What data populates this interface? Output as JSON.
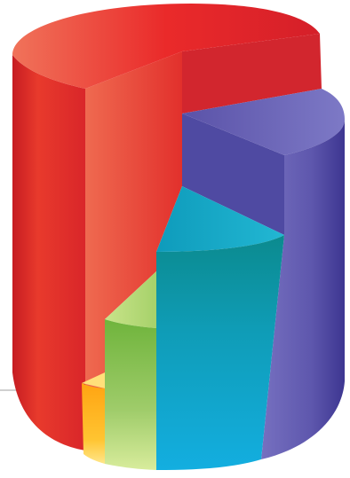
{
  "illustration": {
    "segments": [
      {
        "name": "red",
        "share_of_circle": 0.5,
        "relative_height": 1.0,
        "color": "#e52a2a"
      },
      {
        "name": "purple",
        "share_of_circle": 0.22,
        "relative_height": 0.78,
        "color": "#6a64b8"
      },
      {
        "name": "teal",
        "share_of_circle": 0.14,
        "relative_height": 0.6,
        "color": "#12a6c2"
      },
      {
        "name": "green",
        "share_of_circle": 0.09,
        "relative_height": 0.33,
        "color": "#8cc63f"
      },
      {
        "name": "orange",
        "share_of_circle": 0.05,
        "relative_height": 0.17,
        "color": "#ffb21e"
      }
    ],
    "baseline_color": "#b4b4b4"
  }
}
